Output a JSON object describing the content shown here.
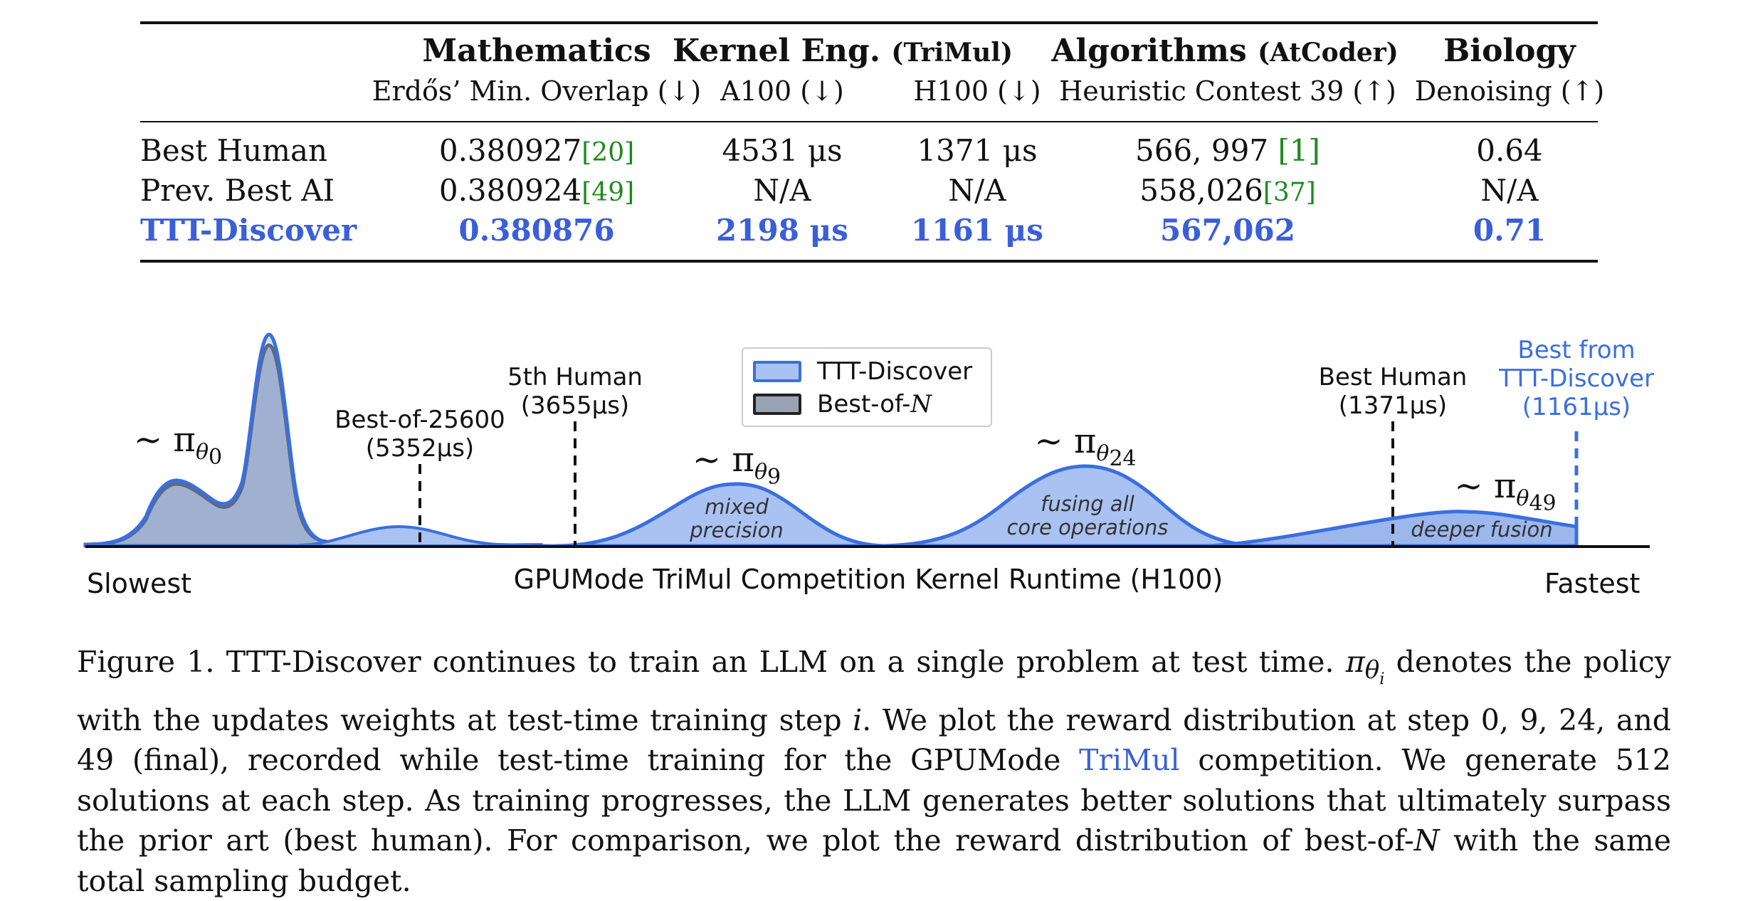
{
  "table": {
    "groups": [
      {
        "title": "Mathematics",
        "suffix": ""
      },
      {
        "title": "Kernel Eng.",
        "suffix": "(TriMul)"
      },
      {
        "title": "Algorithms",
        "suffix": "(AtCoder)"
      },
      {
        "title": "Biology",
        "suffix": ""
      }
    ],
    "subheaders": [
      "Erdős’ Min. Overlap (↓)",
      "A100 (↓)",
      "H100 (↓)",
      "Heuristic Contest 39 (↑)",
      "Denoising (↑)"
    ],
    "rows": [
      {
        "label": "Best Human",
        "cells": [
          {
            "v": "0.380927",
            "c": "[20]"
          },
          {
            "v": "4531 μs",
            "c": ""
          },
          {
            "v": "1371 μs",
            "c": ""
          },
          {
            "v": "566, 997 ",
            "c": "[1]"
          },
          {
            "v": "0.64",
            "c": ""
          }
        ]
      },
      {
        "label": "Prev. Best AI",
        "cells": [
          {
            "v": "0.380924",
            "c": "[49]"
          },
          {
            "v": "N/A",
            "c": ""
          },
          {
            "v": "N/A",
            "c": ""
          },
          {
            "v": "558,026",
            "c": "[37]"
          },
          {
            "v": "N/A",
            "c": ""
          }
        ]
      },
      {
        "label": "TTT-Discover",
        "cells": [
          {
            "v": "0.380876",
            "c": ""
          },
          {
            "v": "2198 μs",
            "c": ""
          },
          {
            "v": "1161 μs",
            "c": ""
          },
          {
            "v": "567,062",
            "c": ""
          },
          {
            "v": "0.71",
            "c": ""
          }
        ]
      }
    ]
  },
  "figure": {
    "legend": {
      "ttt": "TTT-Discover",
      "bon_prefix": "Best-of-",
      "bon_var": "N"
    },
    "annotations": {
      "best_of": [
        "Best-of-25600",
        "(5352μs)"
      ],
      "fifth_human": [
        "5th Human",
        "(3655μs)"
      ],
      "best_human": [
        "Best Human",
        "(1371μs)"
      ],
      "best_ttt": [
        "Best from",
        "TTT-Discover",
        "(1161μs)"
      ]
    },
    "policies": {
      "p0": "0",
      "p9": "9",
      "p24": "24",
      "p49": "49",
      "tilde_pi": "∼ π",
      "theta": "θ"
    },
    "inside_labels": {
      "p9": [
        "mixed",
        "precision"
      ],
      "p24": [
        "fusing all",
        "core operations"
      ],
      "p49": "deeper fusion"
    },
    "axis": {
      "left": "Slowest",
      "center": "GPUMode TriMul Competition Kernel Runtime (H100)",
      "right": "Fastest"
    },
    "colors": {
      "ttt_line": "#3b6fe0",
      "ttt_fill": "#a9c2f2",
      "bon_line": "#222222",
      "bon_fill": "#9aa3b4"
    }
  },
  "caption": {
    "p1": "Figure 1. TTT-Discover continues to train an LLM on a single problem at test time. ",
    "pi": "π",
    "theta_i": "θ",
    "i": "i",
    "p2": " denotes the policy with the updates weights at test-time training step ",
    "p3": ". We plot the reward distribution at step 0, 9, 24, and 49 (final), recorded while test-time training for the GPUMode ",
    "link": "TriMul",
    "p4": " competition. We generate 512 solutions at each step. As training progresses, the LLM generates better solutions that ultimately surpass the prior art (best human). For comparison, we plot the reward distribution of best-of-",
    "N": "N",
    "p5": " with the same total sampling budget."
  }
}
